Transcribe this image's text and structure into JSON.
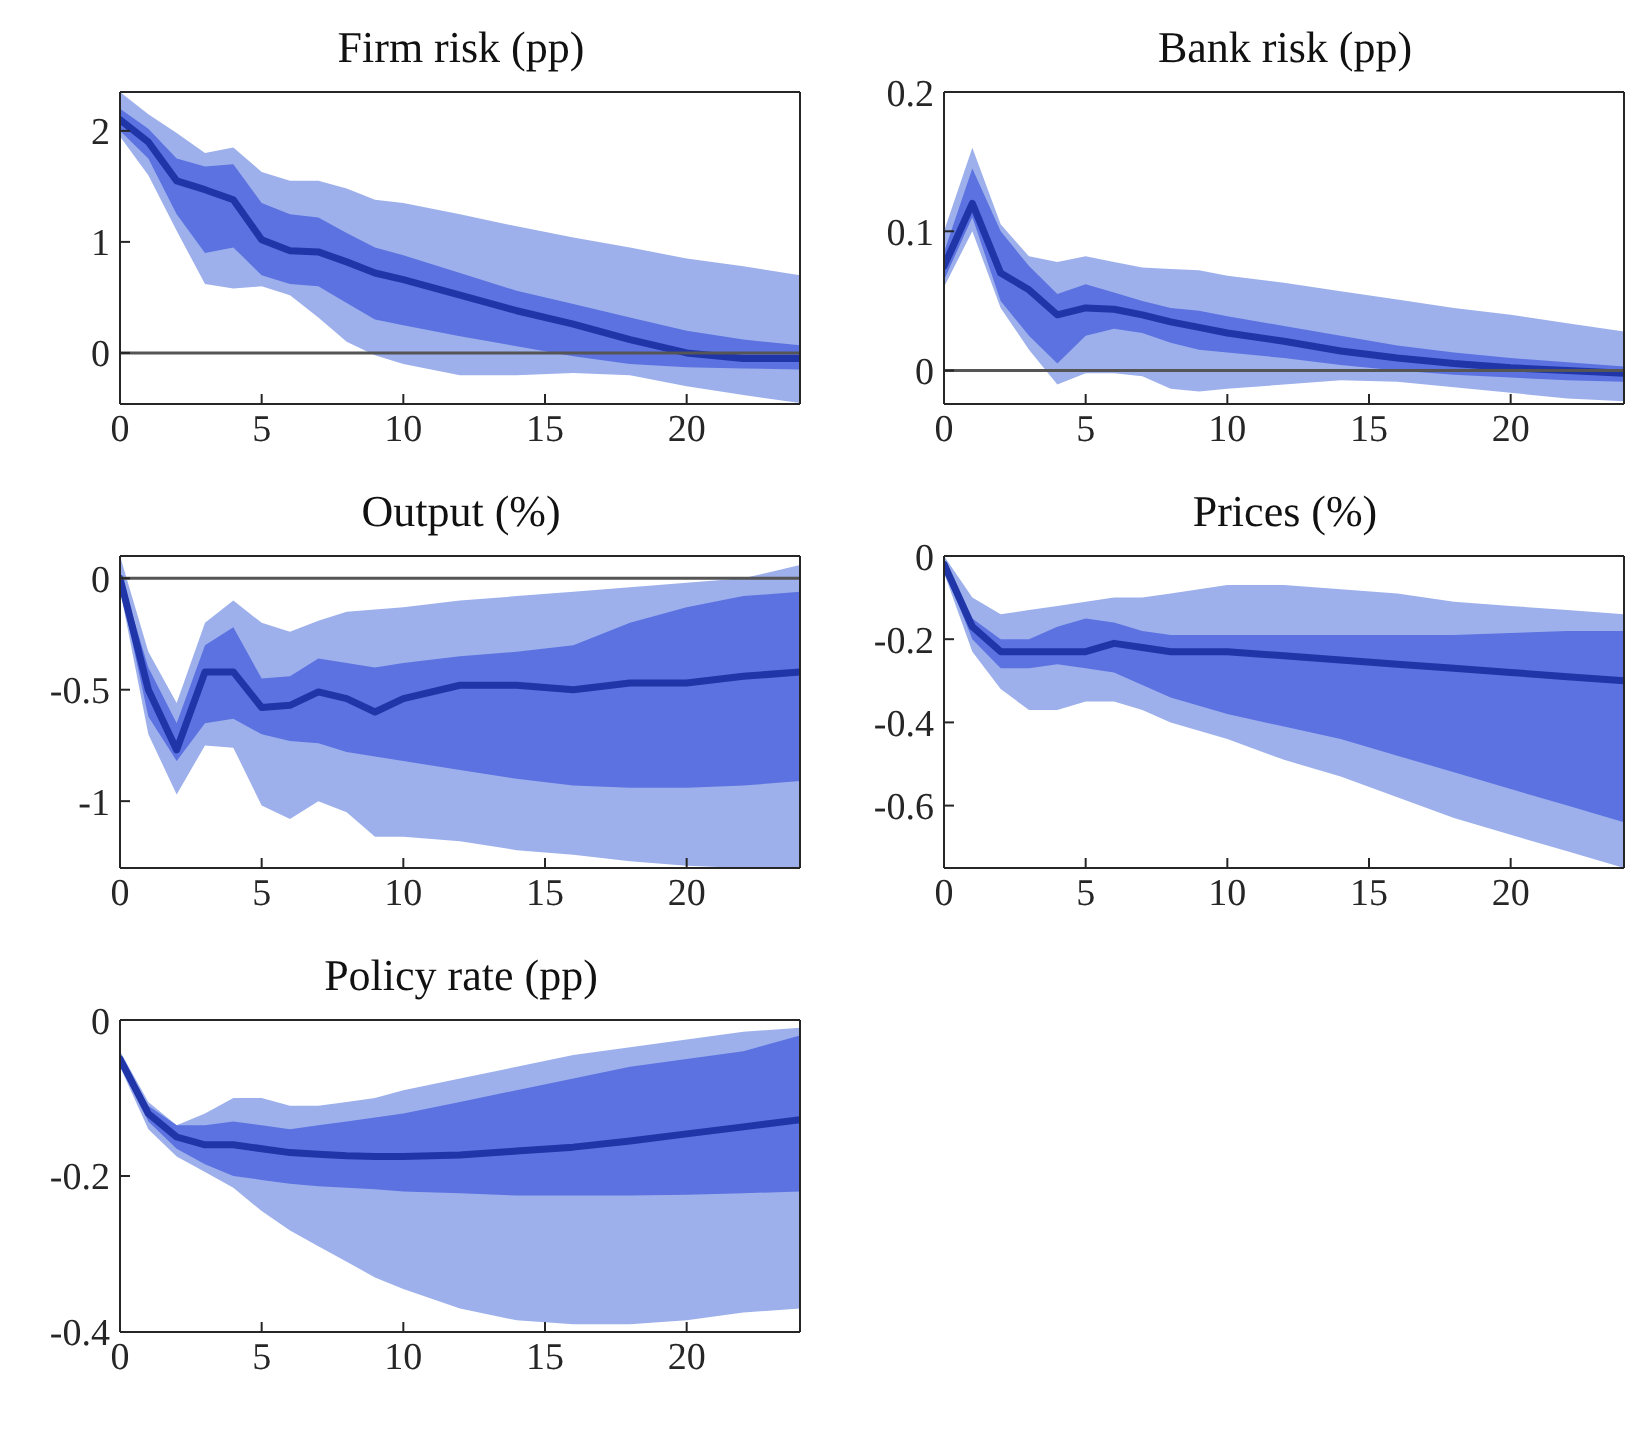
{
  "chart_data": [
    {
      "type": "line",
      "title": "Firm risk (pp)",
      "x": [
        0,
        1,
        2,
        3,
        4,
        5,
        6,
        7,
        8,
        9,
        10,
        12,
        14,
        16,
        18,
        20,
        22,
        24
      ],
      "xlim": [
        0,
        24
      ],
      "xticks": [
        0,
        5,
        10,
        15,
        20
      ],
      "ylim": [
        -0.46,
        2.35
      ],
      "yticks": [
        0,
        1,
        2
      ],
      "ref_lines": [
        {
          "axis": "y",
          "value": 0,
          "color": "#555555"
        }
      ],
      "series": [
        {
          "color": "#9db0ec",
          "values": [
            null,
            null,
            null,
            null,
            null,
            null,
            null,
            null,
            null,
            null,
            null,
            null,
            null,
            null,
            null,
            null,
            null,
            null
          ],
          "lower": [
            1.95,
            1.6,
            1.1,
            0.62,
            0.58,
            0.6,
            0.52,
            0.32,
            0.1,
            -0.02,
            -0.1,
            -0.2,
            -0.2,
            -0.18,
            -0.2,
            -0.3,
            -0.38,
            -0.45
          ],
          "upper": [
            2.35,
            2.15,
            1.98,
            1.8,
            1.85,
            1.63,
            1.55,
            1.55,
            1.48,
            1.38,
            1.35,
            1.25,
            1.14,
            1.04,
            0.95,
            0.85,
            0.78,
            0.7
          ]
        },
        {
          "color": "#5b72e0",
          "values": [
            null,
            null,
            null,
            null,
            null,
            null,
            null,
            null,
            null,
            null,
            null,
            null,
            null,
            null,
            null,
            null,
            null,
            null
          ],
          "lower": [
            2.0,
            1.75,
            1.25,
            0.9,
            0.95,
            0.7,
            0.62,
            0.6,
            0.45,
            0.3,
            0.25,
            0.15,
            0.06,
            -0.03,
            -0.1,
            -0.13,
            -0.14,
            -0.15
          ],
          "upper": [
            2.2,
            2.02,
            1.75,
            1.68,
            1.7,
            1.35,
            1.25,
            1.22,
            1.08,
            0.95,
            0.88,
            0.72,
            0.56,
            0.44,
            0.32,
            0.2,
            0.12,
            0.07
          ]
        },
        {
          "color": "#1f35a8",
          "values": [
            2.1,
            1.9,
            1.55,
            1.47,
            1.38,
            1.02,
            0.92,
            0.91,
            0.82,
            0.72,
            0.66,
            0.52,
            0.38,
            0.26,
            0.12,
            0.0,
            -0.05,
            -0.05
          ]
        }
      ]
    },
    {
      "type": "line",
      "title": "Bank risk (pp)",
      "x": [
        0,
        1,
        2,
        3,
        4,
        5,
        6,
        7,
        8,
        9,
        10,
        12,
        14,
        16,
        18,
        20,
        22,
        24
      ],
      "xlim": [
        0,
        24
      ],
      "xticks": [
        0,
        5,
        10,
        15,
        20
      ],
      "ylim": [
        -0.024,
        0.2
      ],
      "yticks": [
        0,
        0.1,
        0.2
      ],
      "ref_lines": [
        {
          "axis": "y",
          "value": 0,
          "color": "#555555"
        }
      ],
      "series": [
        {
          "color": "#9db0ec",
          "values": [
            null,
            null,
            null,
            null,
            null,
            null,
            null,
            null,
            null,
            null,
            null,
            null,
            null,
            null,
            null,
            null,
            null,
            null
          ],
          "lower": [
            0.06,
            0.1,
            0.045,
            0.015,
            -0.01,
            -0.002,
            -0.002,
            -0.004,
            -0.013,
            -0.015,
            -0.013,
            -0.01,
            -0.007,
            -0.008,
            -0.012,
            -0.016,
            -0.02,
            -0.022
          ],
          "upper": [
            0.1,
            0.16,
            0.105,
            0.082,
            0.078,
            0.082,
            0.078,
            0.074,
            0.073,
            0.072,
            0.068,
            0.063,
            0.057,
            0.051,
            0.045,
            0.04,
            0.034,
            0.028
          ]
        },
        {
          "color": "#5b72e0",
          "values": [
            null,
            null,
            null,
            null,
            null,
            null,
            null,
            null,
            null,
            null,
            null,
            null,
            null,
            null,
            null,
            null,
            null,
            null
          ],
          "lower": [
            0.065,
            0.11,
            0.05,
            0.025,
            0.005,
            0.025,
            0.03,
            0.027,
            0.02,
            0.015,
            0.013,
            0.009,
            0.004,
            0.0,
            -0.003,
            -0.005,
            -0.007,
            -0.008
          ],
          "upper": [
            0.085,
            0.145,
            0.1,
            0.075,
            0.055,
            0.062,
            0.056,
            0.05,
            0.045,
            0.043,
            0.039,
            0.032,
            0.025,
            0.018,
            0.013,
            0.009,
            0.006,
            0.003
          ]
        },
        {
          "color": "#1f35a8",
          "values": [
            0.075,
            0.12,
            0.07,
            0.058,
            0.04,
            0.045,
            0.044,
            0.04,
            0.035,
            0.031,
            0.027,
            0.021,
            0.014,
            0.009,
            0.005,
            0.002,
            0.0,
            -0.002
          ]
        }
      ]
    },
    {
      "type": "line",
      "title": "Output (%)",
      "x": [
        0,
        1,
        2,
        3,
        4,
        5,
        6,
        7,
        8,
        9,
        10,
        12,
        14,
        16,
        18,
        20,
        22,
        24
      ],
      "xlim": [
        0,
        24
      ],
      "xticks": [
        0,
        5,
        10,
        15,
        20
      ],
      "ylim": [
        -1.3,
        0.1
      ],
      "yticks": [
        -1,
        -0.5,
        0
      ],
      "ref_lines": [
        {
          "axis": "y",
          "value": 0,
          "color": "#555555"
        }
      ],
      "series": [
        {
          "color": "#9db0ec",
          "values": [
            null,
            null,
            null,
            null,
            null,
            null,
            null,
            null,
            null,
            null,
            null,
            null,
            null,
            null,
            null,
            null,
            null,
            null
          ],
          "lower": [
            -0.05,
            -0.7,
            -0.97,
            -0.75,
            -0.76,
            -1.02,
            -1.08,
            -1.0,
            -1.05,
            -1.16,
            -1.16,
            -1.18,
            -1.22,
            -1.24,
            -1.27,
            -1.29,
            -1.3,
            -1.3
          ],
          "upper": [
            0.1,
            -0.33,
            -0.56,
            -0.2,
            -0.1,
            -0.2,
            -0.24,
            -0.19,
            -0.15,
            -0.14,
            -0.13,
            -0.1,
            -0.08,
            -0.06,
            -0.04,
            -0.02,
            0.0,
            0.06
          ]
        },
        {
          "color": "#5b72e0",
          "values": [
            null,
            null,
            null,
            null,
            null,
            null,
            null,
            null,
            null,
            null,
            null,
            null,
            null,
            null,
            null,
            null,
            null,
            null
          ],
          "lower": [
            -0.03,
            -0.62,
            -0.82,
            -0.65,
            -0.63,
            -0.7,
            -0.73,
            -0.74,
            -0.78,
            -0.8,
            -0.82,
            -0.86,
            -0.9,
            -0.93,
            -0.94,
            -0.94,
            -0.93,
            -0.91
          ],
          "upper": [
            0.02,
            -0.4,
            -0.65,
            -0.3,
            -0.22,
            -0.45,
            -0.44,
            -0.36,
            -0.38,
            -0.4,
            -0.38,
            -0.35,
            -0.33,
            -0.3,
            -0.2,
            -0.13,
            -0.08,
            -0.06
          ]
        },
        {
          "color": "#1f35a8",
          "values": [
            0,
            -0.5,
            -0.77,
            -0.42,
            -0.42,
            -0.58,
            -0.57,
            -0.51,
            -0.54,
            -0.6,
            -0.54,
            -0.48,
            -0.48,
            -0.5,
            -0.47,
            -0.47,
            -0.44,
            -0.42
          ]
        }
      ]
    },
    {
      "type": "line",
      "title": "Prices (%)",
      "x": [
        0,
        1,
        2,
        3,
        4,
        5,
        6,
        7,
        8,
        9,
        10,
        12,
        14,
        16,
        18,
        20,
        22,
        24
      ],
      "xlim": [
        0,
        24
      ],
      "xticks": [
        0,
        5,
        10,
        15,
        20
      ],
      "ylim": [
        -0.75,
        0
      ],
      "yticks": [
        -0.6,
        -0.4,
        -0.2,
        0
      ],
      "series": [
        {
          "color": "#9db0ec",
          "values": [
            null,
            null,
            null,
            null,
            null,
            null,
            null,
            null,
            null,
            null,
            null,
            null,
            null,
            null,
            null,
            null,
            null,
            null
          ],
          "lower": [
            -0.04,
            -0.23,
            -0.32,
            -0.37,
            -0.37,
            -0.35,
            -0.35,
            -0.37,
            -0.4,
            -0.42,
            -0.44,
            -0.49,
            -0.53,
            -0.58,
            -0.63,
            -0.67,
            -0.71,
            -0.75
          ],
          "upper": [
            0,
            -0.1,
            -0.14,
            -0.13,
            -0.12,
            -0.11,
            -0.1,
            -0.1,
            -0.09,
            -0.08,
            -0.07,
            -0.07,
            -0.08,
            -0.09,
            -0.11,
            -0.12,
            -0.13,
            -0.14
          ]
        },
        {
          "color": "#5b72e0",
          "values": [
            null,
            null,
            null,
            null,
            null,
            null,
            null,
            null,
            null,
            null,
            null,
            null,
            null,
            null,
            null,
            null,
            null,
            null
          ],
          "lower": [
            -0.03,
            -0.2,
            -0.27,
            -0.27,
            -0.26,
            -0.27,
            -0.28,
            -0.31,
            -0.34,
            -0.36,
            -0.38,
            -0.41,
            -0.44,
            -0.48,
            -0.52,
            -0.56,
            -0.6,
            -0.64
          ],
          "upper": [
            -0.01,
            -0.15,
            -0.2,
            -0.2,
            -0.17,
            -0.15,
            -0.16,
            -0.18,
            -0.19,
            -0.19,
            -0.19,
            -0.19,
            -0.19,
            -0.19,
            -0.19,
            -0.185,
            -0.18,
            -0.18
          ]
        },
        {
          "color": "#1f35a8",
          "values": [
            -0.02,
            -0.17,
            -0.23,
            -0.23,
            -0.23,
            -0.23,
            -0.21,
            -0.22,
            -0.23,
            -0.23,
            -0.23,
            -0.24,
            -0.25,
            -0.26,
            -0.27,
            -0.28,
            -0.29,
            -0.3
          ]
        }
      ]
    },
    {
      "type": "line",
      "title": "Policy rate (pp)",
      "x": [
        0,
        1,
        2,
        3,
        4,
        5,
        6,
        7,
        8,
        9,
        10,
        12,
        14,
        16,
        18,
        20,
        22,
        24
      ],
      "xlim": [
        0,
        24
      ],
      "xticks": [
        0,
        5,
        10,
        15,
        20
      ],
      "ylim": [
        -0.4,
        0
      ],
      "yticks": [
        -0.4,
        -0.2,
        0
      ],
      "series": [
        {
          "color": "#9db0ec",
          "values": [
            null,
            null,
            null,
            null,
            null,
            null,
            null,
            null,
            null,
            null,
            null,
            null,
            null,
            null,
            null,
            null,
            null,
            null
          ],
          "lower": [
            -0.06,
            -0.14,
            -0.175,
            -0.195,
            -0.215,
            -0.245,
            -0.27,
            -0.29,
            -0.31,
            -0.33,
            -0.345,
            -0.37,
            -0.385,
            -0.39,
            -0.39,
            -0.385,
            -0.375,
            -0.37
          ],
          "upper": [
            -0.04,
            -0.105,
            -0.135,
            -0.12,
            -0.1,
            -0.1,
            -0.11,
            -0.11,
            -0.105,
            -0.1,
            -0.09,
            -0.075,
            -0.06,
            -0.045,
            -0.035,
            -0.025,
            -0.015,
            -0.01
          ]
        },
        {
          "color": "#5b72e0",
          "values": [
            null,
            null,
            null,
            null,
            null,
            null,
            null,
            null,
            null,
            null,
            null,
            null,
            null,
            null,
            null,
            null,
            null,
            null
          ],
          "lower": [
            -0.055,
            -0.13,
            -0.165,
            -0.185,
            -0.2,
            -0.205,
            -0.21,
            -0.213,
            -0.215,
            -0.217,
            -0.22,
            -0.222,
            -0.225,
            -0.225,
            -0.225,
            -0.224,
            -0.222,
            -0.22
          ],
          "upper": [
            -0.045,
            -0.11,
            -0.135,
            -0.135,
            -0.13,
            -0.135,
            -0.14,
            -0.135,
            -0.13,
            -0.125,
            -0.12,
            -0.105,
            -0.09,
            -0.075,
            -0.06,
            -0.05,
            -0.04,
            -0.02
          ]
        },
        {
          "color": "#1f35a8",
          "values": [
            -0.05,
            -0.12,
            -0.15,
            -0.16,
            -0.16,
            -0.165,
            -0.17,
            -0.172,
            -0.174,
            -0.175,
            -0.175,
            -0.173,
            -0.168,
            -0.163,
            -0.155,
            -0.146,
            -0.137,
            -0.128
          ]
        }
      ]
    }
  ]
}
